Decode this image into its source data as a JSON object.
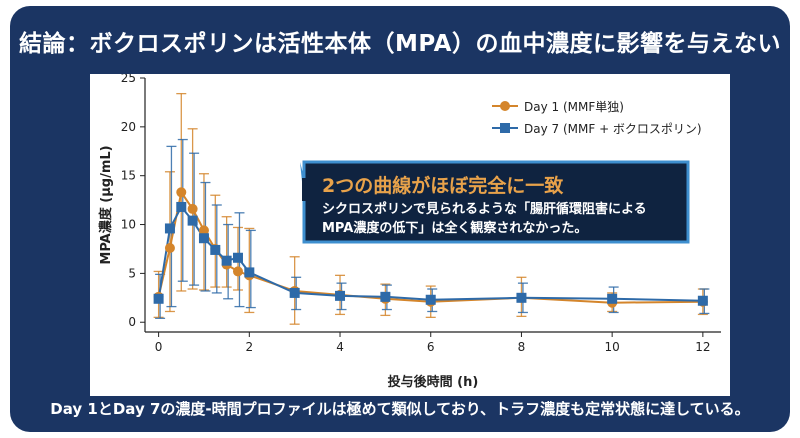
{
  "slide": {
    "title": "結論：ボクロスポリンは活性本体（MPA）の血中濃度に影響を与えない",
    "footer": "Day 1とDay 7の濃度-時間プロファイルは極めて類似しており、トラフ濃度も定常状態に達している。"
  },
  "callout": {
    "heading": "2つの曲線がほぼ完全に一致",
    "body_line1": "シクロスポリンで見られるような「腸肝循環阻害による",
    "body_line2": "MPA濃度の低下」は全く観察されなかった。"
  },
  "colors": {
    "background": "#1b3563",
    "day1": "#d4852b",
    "day7": "#2e6aa8",
    "callout_bg": "#0f2340",
    "callout_border": "#3e8fcf",
    "callout_heading": "#e8a24a"
  },
  "chart_data": {
    "type": "line",
    "title": "",
    "xlabel": "投与後時間 (h)",
    "ylabel": "MPA濃度 (μg/mL)",
    "xlim": [
      -0.3,
      12.4
    ],
    "ylim": [
      -1,
      25
    ],
    "xticks": [
      0,
      2,
      4,
      6,
      8,
      10,
      12
    ],
    "yticks": [
      0,
      5,
      10,
      15,
      20,
      25
    ],
    "series": [
      {
        "name": "Day 1 (MMF単独)",
        "marker": "circle",
        "x": [
          0,
          0.25,
          0.5,
          0.75,
          1,
          1.25,
          1.5,
          1.75,
          2,
          3,
          4,
          5,
          6,
          8,
          10,
          12
        ],
        "y": [
          2.6,
          7.6,
          13.3,
          11.6,
          9.4,
          7.5,
          5.9,
          5.2,
          4.8,
          3.2,
          2.8,
          2.4,
          2.1,
          2.5,
          2.0,
          2.1
        ],
        "err_low": [
          0.5,
          1.1,
          3.2,
          3.4,
          3.3,
          3.6,
          3.6,
          3.3,
          1.0,
          -0.2,
          0.8,
          0.7,
          0.5,
          0.6,
          1.1,
          0.8
        ],
        "err_high": [
          5.2,
          15.4,
          23.4,
          19.8,
          15.2,
          13.0,
          10.8,
          9.7,
          9.6,
          6.7,
          4.8,
          3.9,
          3.7,
          4.6,
          3.0,
          3.4
        ]
      },
      {
        "name": "Day 7 (MMF + ボクロスポリン)",
        "marker": "square",
        "x": [
          0,
          0.25,
          0.5,
          0.75,
          1,
          1.25,
          1.5,
          1.75,
          2,
          3,
          4,
          5,
          6,
          8,
          10,
          12
        ],
        "y": [
          2.4,
          9.6,
          11.8,
          10.4,
          8.6,
          7.4,
          6.3,
          6.6,
          5.1,
          3.0,
          2.7,
          2.6,
          2.3,
          2.5,
          2.4,
          2.2
        ],
        "err_low": [
          0.4,
          1.6,
          4.2,
          3.8,
          3.2,
          3.0,
          2.4,
          1.6,
          1.5,
          1.3,
          1.3,
          1.3,
          1.1,
          1.0,
          1.0,
          0.9
        ],
        "err_high": [
          4.9,
          18.0,
          18.7,
          17.3,
          14.3,
          12.0,
          10.0,
          11.2,
          9.4,
          4.6,
          4.0,
          3.8,
          3.4,
          4.0,
          3.6,
          3.4
        ]
      }
    ]
  }
}
